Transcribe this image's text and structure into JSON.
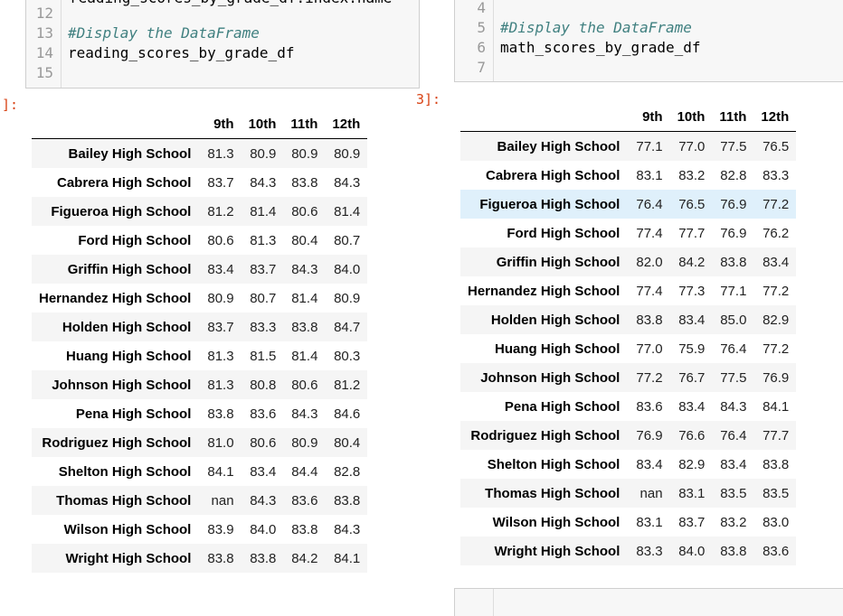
{
  "left_cell": {
    "partial_line_top": "reading_scores_by_grade_df.index.name",
    "lines": [
      {
        "num": "12",
        "comment": "",
        "code": ""
      },
      {
        "num": "13",
        "comment": "#Display the DataFrame",
        "code": ""
      },
      {
        "num": "14",
        "comment": "",
        "code": "reading_scores_by_grade_df"
      },
      {
        "num": "15",
        "comment": "",
        "code": ""
      }
    ],
    "out_prompt": "]:"
  },
  "right_cell": {
    "lines": [
      {
        "num": "4",
        "comment": "",
        "code": ""
      },
      {
        "num": "5",
        "comment": "#Display the DataFrame",
        "code": ""
      },
      {
        "num": "6",
        "comment": "",
        "code": "math_scores_by_grade_df"
      },
      {
        "num": "7",
        "comment": "",
        "code": ""
      }
    ],
    "out_prompt": "3]:"
  },
  "reading_table": {
    "columns": [
      "9th",
      "10th",
      "11th",
      "12th"
    ],
    "rows": [
      {
        "school": "Bailey High School",
        "values": [
          "81.3",
          "80.9",
          "80.9",
          "80.9"
        ]
      },
      {
        "school": "Cabrera High School",
        "values": [
          "83.7",
          "84.3",
          "83.8",
          "84.3"
        ]
      },
      {
        "school": "Figueroa High School",
        "values": [
          "81.2",
          "81.4",
          "80.6",
          "81.4"
        ]
      },
      {
        "school": "Ford High School",
        "values": [
          "80.6",
          "81.3",
          "80.4",
          "80.7"
        ]
      },
      {
        "school": "Griffin High School",
        "values": [
          "83.4",
          "83.7",
          "84.3",
          "84.0"
        ]
      },
      {
        "school": "Hernandez High School",
        "values": [
          "80.9",
          "80.7",
          "81.4",
          "80.9"
        ]
      },
      {
        "school": "Holden High School",
        "values": [
          "83.7",
          "83.3",
          "83.8",
          "84.7"
        ]
      },
      {
        "school": "Huang High School",
        "values": [
          "81.3",
          "81.5",
          "81.4",
          "80.3"
        ]
      },
      {
        "school": "Johnson High School",
        "values": [
          "81.3",
          "80.8",
          "80.6",
          "81.2"
        ]
      },
      {
        "school": "Pena High School",
        "values": [
          "83.8",
          "83.6",
          "84.3",
          "84.6"
        ]
      },
      {
        "school": "Rodriguez High School",
        "values": [
          "81.0",
          "80.6",
          "80.9",
          "80.4"
        ]
      },
      {
        "school": "Shelton High School",
        "values": [
          "84.1",
          "83.4",
          "84.4",
          "82.8"
        ]
      },
      {
        "school": "Thomas High School",
        "values": [
          "nan",
          "84.3",
          "83.6",
          "83.8"
        ]
      },
      {
        "school": "Wilson High School",
        "values": [
          "83.9",
          "84.0",
          "83.8",
          "84.3"
        ]
      },
      {
        "school": "Wright High School",
        "values": [
          "83.8",
          "83.8",
          "84.2",
          "84.1"
        ]
      }
    ]
  },
  "math_table": {
    "columns": [
      "9th",
      "10th",
      "11th",
      "12th"
    ],
    "hovered_row_index": 2,
    "rows": [
      {
        "school": "Bailey High School",
        "values": [
          "77.1",
          "77.0",
          "77.5",
          "76.5"
        ]
      },
      {
        "school": "Cabrera High School",
        "values": [
          "83.1",
          "83.2",
          "82.8",
          "83.3"
        ]
      },
      {
        "school": "Figueroa High School",
        "values": [
          "76.4",
          "76.5",
          "76.9",
          "77.2"
        ]
      },
      {
        "school": "Ford High School",
        "values": [
          "77.4",
          "77.7",
          "76.9",
          "76.2"
        ]
      },
      {
        "school": "Griffin High School",
        "values": [
          "82.0",
          "84.2",
          "83.8",
          "83.4"
        ]
      },
      {
        "school": "Hernandez High School",
        "values": [
          "77.4",
          "77.3",
          "77.1",
          "77.2"
        ]
      },
      {
        "school": "Holden High School",
        "values": [
          "83.8",
          "83.4",
          "85.0",
          "82.9"
        ]
      },
      {
        "school": "Huang High School",
        "values": [
          "77.0",
          "75.9",
          "76.4",
          "77.2"
        ]
      },
      {
        "school": "Johnson High School",
        "values": [
          "77.2",
          "76.7",
          "77.5",
          "76.9"
        ]
      },
      {
        "school": "Pena High School",
        "values": [
          "83.6",
          "83.4",
          "84.3",
          "84.1"
        ]
      },
      {
        "school": "Rodriguez High School",
        "values": [
          "76.9",
          "76.6",
          "76.4",
          "77.7"
        ]
      },
      {
        "school": "Shelton High School",
        "values": [
          "83.4",
          "82.9",
          "83.4",
          "83.8"
        ]
      },
      {
        "school": "Thomas High School",
        "values": [
          "nan",
          "83.1",
          "83.5",
          "83.5"
        ]
      },
      {
        "school": "Wilson High School",
        "values": [
          "83.1",
          "83.7",
          "83.2",
          "83.0"
        ]
      },
      {
        "school": "Wright High School",
        "values": [
          "83.3",
          "84.0",
          "83.8",
          "83.6"
        ]
      }
    ]
  }
}
